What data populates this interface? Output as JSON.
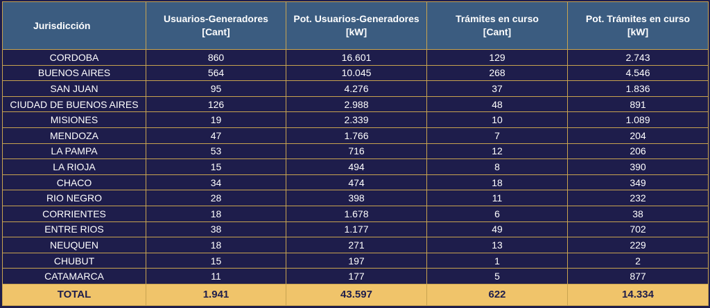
{
  "headers": [
    {
      "line1": "Jurisdicción",
      "line2": ""
    },
    {
      "line1": "Usuarios-Generadores",
      "line2": "[Cant]"
    },
    {
      "line1": "Pot. Usuarios-Generadores",
      "line2": "[kW]"
    },
    {
      "line1": "Trámites en curso",
      "line2": "[Cant]"
    },
    {
      "line1": "Pot. Trámites en curso",
      "line2": "[kW]"
    }
  ],
  "rows": [
    [
      "CORDOBA",
      "860",
      "16.601",
      "129",
      "2.743"
    ],
    [
      "BUENOS AIRES",
      "564",
      "10.045",
      "268",
      "4.546"
    ],
    [
      "SAN JUAN",
      "95",
      "4.276",
      "37",
      "1.836"
    ],
    [
      "CIUDAD DE BUENOS AIRES",
      "126",
      "2.988",
      "48",
      "891"
    ],
    [
      "MISIONES",
      "19",
      "2.339",
      "10",
      "1.089"
    ],
    [
      "MENDOZA",
      "47",
      "1.766",
      "7",
      "204"
    ],
    [
      "LA PAMPA",
      "53",
      "716",
      "12",
      "206"
    ],
    [
      "LA RIOJA",
      "15",
      "494",
      "8",
      "390"
    ],
    [
      "CHACO",
      "34",
      "474",
      "18",
      "349"
    ],
    [
      "RIO NEGRO",
      "28",
      "398",
      "11",
      "232"
    ],
    [
      "CORRIENTES",
      "18",
      "1.678",
      "6",
      "38"
    ],
    [
      "ENTRE RIOS",
      "38",
      "1.177",
      "49",
      "702"
    ],
    [
      "NEUQUEN",
      "18",
      "271",
      "13",
      "229"
    ],
    [
      "CHUBUT",
      "15",
      "197",
      "1",
      "2"
    ],
    [
      "CATAMARCA",
      "11",
      "177",
      "5",
      "877"
    ]
  ],
  "total": [
    "TOTAL",
    "1.941",
    "43.597",
    "622",
    "14.334"
  ],
  "colors": {
    "background": "#1e1d4b",
    "header": "#3b5c80",
    "border": "#c9a450",
    "total_row": "#f0c46a"
  }
}
